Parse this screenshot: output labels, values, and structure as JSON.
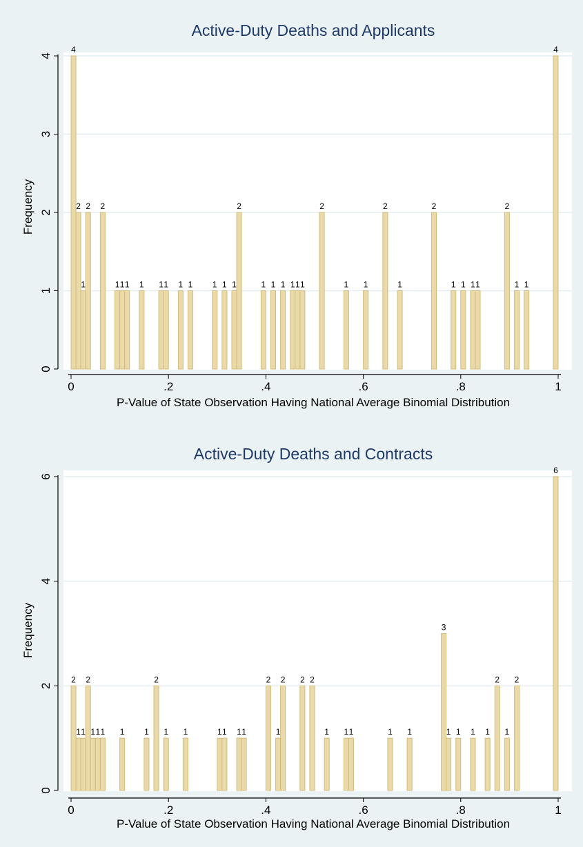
{
  "chart_data": [
    {
      "type": "bar",
      "title": "Active-Duty Deaths and Applicants",
      "xlabel": "P-Value of State Observation Having National Average Binomial Distribution",
      "ylabel": "Frequency",
      "xlim": [
        0,
        1
      ],
      "ylim": [
        0,
        4
      ],
      "xticks": [
        "0",
        ".2",
        ".4",
        ".6",
        ".8",
        "1"
      ],
      "yticks": [
        "0",
        "1",
        "2",
        "3",
        "4"
      ],
      "bar_width": 0.01,
      "grid": true,
      "x": [
        0.0,
        0.01,
        0.02,
        0.03,
        0.06,
        0.09,
        0.1,
        0.11,
        0.14,
        0.18,
        0.19,
        0.22,
        0.24,
        0.29,
        0.31,
        0.33,
        0.34,
        0.39,
        0.41,
        0.43,
        0.45,
        0.46,
        0.47,
        0.51,
        0.56,
        0.6,
        0.64,
        0.67,
        0.74,
        0.78,
        0.8,
        0.82,
        0.83,
        0.89,
        0.91,
        0.93,
        0.99
      ],
      "values": [
        4,
        2,
        1,
        2,
        2,
        1,
        1,
        1,
        1,
        1,
        1,
        1,
        1,
        1,
        1,
        1,
        2,
        1,
        1,
        1,
        1,
        1,
        1,
        2,
        1,
        1,
        2,
        1,
        2,
        1,
        1,
        1,
        1,
        2,
        1,
        1,
        4
      ]
    },
    {
      "type": "bar",
      "title": "Active-Duty Deaths and Contracts",
      "xlabel": "P-Value of State Observation Having National Average Binomial Distribution",
      "ylabel": "Frequency",
      "xlim": [
        0,
        1
      ],
      "ylim": [
        0,
        6
      ],
      "xticks": [
        "0",
        ".2",
        ".4",
        ".6",
        ".8",
        "1"
      ],
      "yticks": [
        "0",
        "2",
        "4",
        "6"
      ],
      "bar_width": 0.01,
      "grid": true,
      "x": [
        0.0,
        0.01,
        0.02,
        0.03,
        0.04,
        0.05,
        0.06,
        0.1,
        0.15,
        0.17,
        0.19,
        0.23,
        0.3,
        0.31,
        0.34,
        0.35,
        0.4,
        0.42,
        0.43,
        0.47,
        0.49,
        0.52,
        0.56,
        0.57,
        0.65,
        0.69,
        0.76,
        0.77,
        0.79,
        0.82,
        0.85,
        0.87,
        0.89,
        0.91,
        0.99
      ],
      "values": [
        2,
        1,
        1,
        2,
        1,
        1,
        1,
        1,
        1,
        2,
        1,
        1,
        1,
        1,
        1,
        1,
        2,
        1,
        2,
        2,
        2,
        1,
        1,
        1,
        1,
        1,
        3,
        1,
        1,
        1,
        1,
        2,
        1,
        2,
        6
      ]
    }
  ],
  "colors": {
    "background": "#eaf2f3",
    "plot_area": "#ffffff",
    "bar_fill": "#ead9a9",
    "bar_stroke": "#d3bd7d",
    "grid": "#e4eef0",
    "title": "#1f3a6a"
  }
}
